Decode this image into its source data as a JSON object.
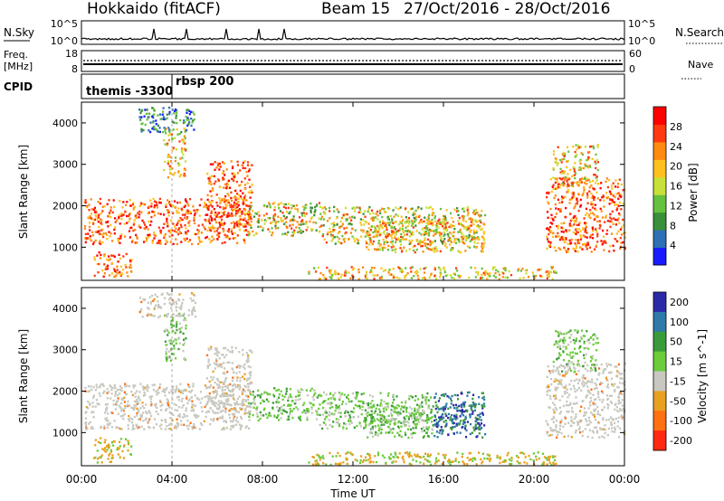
{
  "header": {
    "title": "Hokkaido (fitACF)",
    "beam": "Beam 15",
    "date_range": "27/Oct/2016 - 28/Oct/2016"
  },
  "strips": {
    "nsky_label": "N.Sky",
    "nsearch_label": "N.Search",
    "ticks_top": [
      "10^5",
      "10^0"
    ],
    "freq_label_1": "Freq.",
    "freq_label_2": "[MHz]",
    "freq_ticks_left": [
      "18",
      "8"
    ],
    "freq_ticks_right": [
      "60",
      "0"
    ],
    "nave_label": "Nave",
    "cpid_label": "CPID",
    "cpid_segments": [
      {
        "label": "themis -3300",
        "start_hour": 0.0
      },
      {
        "label": "rbsp 200",
        "start_hour": 4.0
      }
    ]
  },
  "chart_data": [
    {
      "type": "heatmap",
      "name": "power-panel",
      "xlabel": "",
      "ylabel": "Slant Range [km]",
      "x_range_hours": [
        0,
        24
      ],
      "ylim": [
        200,
        4500
      ],
      "y_ticks": [
        1000,
        2000,
        3000,
        4000
      ],
      "colorbar": {
        "label": "Power [dB]",
        "range": [
          0,
          32
        ],
        "ticks": [
          4,
          8,
          12,
          16,
          20,
          24,
          28
        ]
      }
    },
    {
      "type": "heatmap",
      "name": "velocity-panel",
      "xlabel": "Time UT",
      "ylabel": "Slant Range [km]",
      "x_range_hours": [
        0,
        24
      ],
      "ylim": [
        200,
        4500
      ],
      "y_ticks": [
        1000,
        2000,
        3000,
        4000
      ],
      "x_ticks": [
        "00:00",
        "04:00",
        "08:00",
        "12:00",
        "16:00",
        "20:00",
        "00:00"
      ],
      "colorbar": {
        "label": "Velocity [m s^-1]",
        "ticks": [
          "200",
          "100",
          "50",
          "15",
          "-15",
          "-50",
          "-100",
          "-200"
        ]
      }
    }
  ],
  "colors": {
    "power_scale": [
      "#1a1aff",
      "#2e6fb5",
      "#3a8f3a",
      "#66c23e",
      "#c8e03a",
      "#ffc020",
      "#ff8a10",
      "#ff3a10",
      "#ff0000"
    ],
    "velocity_scale": [
      "#2a2aa8",
      "#2f7aa8",
      "#3b9b3b",
      "#6ccc3b",
      "#c8c8c0",
      "#e8a020",
      "#ff7010",
      "#ff2a10"
    ]
  }
}
